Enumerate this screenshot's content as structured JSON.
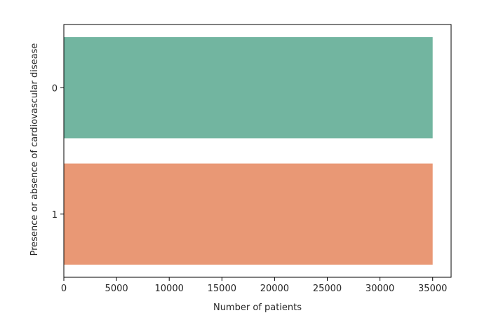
{
  "chart_data": {
    "type": "bar",
    "orientation": "horizontal",
    "categories": [
      "0",
      "1"
    ],
    "values": [
      35000,
      35000
    ],
    "colors": [
      "#72b5a0",
      "#e99875"
    ],
    "xlabel": "Number of patients",
    "ylabel": "Presence or absence of cardiovascular disease",
    "xlim": [
      0,
      36750
    ],
    "xticks": [
      0,
      5000,
      10000,
      15000,
      20000,
      25000,
      30000,
      35000
    ],
    "xtick_labels": [
      "0",
      "5000",
      "10000",
      "15000",
      "20000",
      "25000",
      "30000",
      "35000"
    ],
    "grid": false,
    "legend": "none"
  }
}
